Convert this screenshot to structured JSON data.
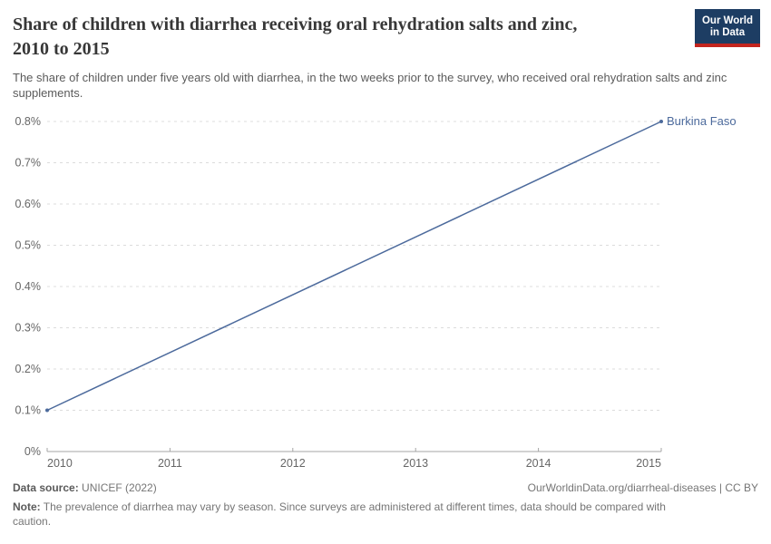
{
  "header": {
    "title": "Share of children with diarrhea receiving oral rehydration salts and zinc, 2010 to 2015",
    "subtitle": "The share of children under five years old with diarrhea, in the two weeks prior to the survey, who received oral rehydration salts and zinc supplements.",
    "logo": {
      "line1": "Our World",
      "line2": "in Data",
      "bg_color": "#1d3d63",
      "accent_color": "#c3251e"
    }
  },
  "chart_data": {
    "type": "line",
    "title": "Share of children with diarrhea receiving oral rehydration salts and zinc, 2010 to 2015",
    "xlabel": "",
    "ylabel": "",
    "xlim": [
      2010,
      2015
    ],
    "ylim": [
      0,
      0.8
    ],
    "x_ticks": [
      "2010",
      "2011",
      "2012",
      "2013",
      "2014",
      "2015"
    ],
    "x_tick_values": [
      2010,
      2011,
      2012,
      2013,
      2014,
      2015
    ],
    "y_ticks": [
      {
        "value": 0,
        "label": "0%"
      },
      {
        "value": 0.1,
        "label": "0.1%"
      },
      {
        "value": 0.2,
        "label": "0.2%"
      },
      {
        "value": 0.3,
        "label": "0.3%"
      },
      {
        "value": 0.4,
        "label": "0.4%"
      },
      {
        "value": 0.5,
        "label": "0.5%"
      },
      {
        "value": 0.6,
        "label": "0.6%"
      },
      {
        "value": 0.7,
        "label": "0.7%"
      },
      {
        "value": 0.8,
        "label": "0.8%"
      }
    ],
    "grid": "horizontal-dashed",
    "legend_position": "series-end-label",
    "unit": "%",
    "axis_color": "#a5a5a5",
    "grid_color": "#dcdcdc",
    "series": [
      {
        "name": "Burkina Faso",
        "color": "#4c6a9c",
        "points": [
          {
            "x": 2010,
            "y": 0.1
          },
          {
            "x": 2015,
            "y": 0.8
          }
        ]
      }
    ]
  },
  "footer": {
    "datasource_label": "Data source:",
    "datasource_value": " UNICEF (2022)",
    "attribution": "OurWorldinData.org/diarrheal-diseases | CC BY",
    "note_label": "Note:",
    "note_value": " The prevalence of diarrhea may vary by season. Since surveys are administered at different times, data should be compared with caution."
  }
}
